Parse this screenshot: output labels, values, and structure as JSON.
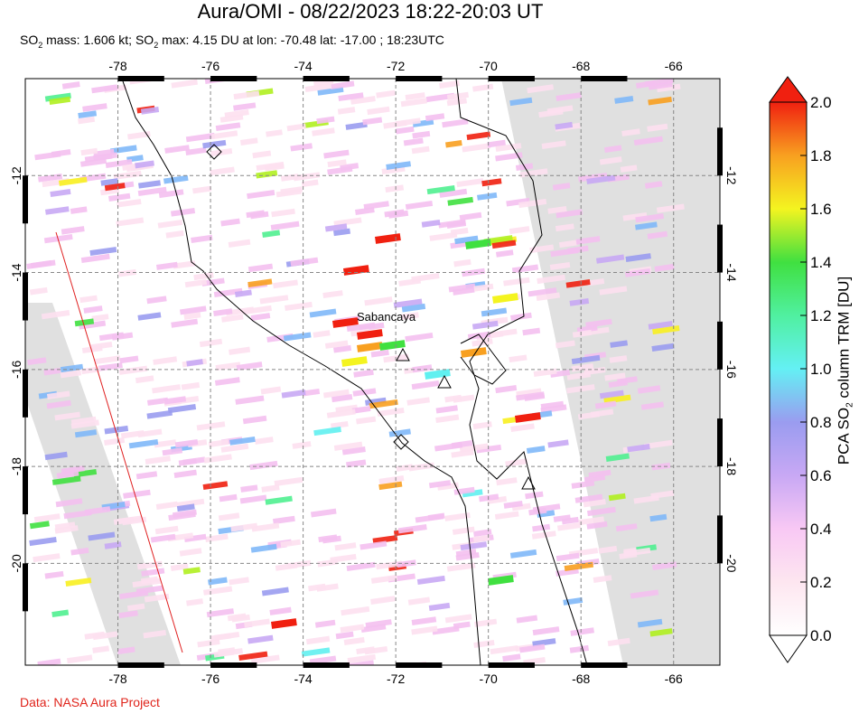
{
  "header": {
    "title": "Aura/OMI - 08/22/2023 18:22-20:03 UT",
    "subtitle_parts": [
      "SO",
      "2",
      " mass: 1.606 kt; SO",
      "2",
      " max: 4.15 DU at lon: -70.48 lat: -17.00 ; 18:23UTC"
    ]
  },
  "credit": "Data: NASA Aura Project",
  "chart_data": {
    "type": "heatmap",
    "lon_ticks": [
      "-78",
      "-76",
      "-74",
      "-72",
      "-70",
      "-68",
      "-66"
    ],
    "lat_ticks": [
      "-12",
      "-14",
      "-16",
      "-18",
      "-20"
    ],
    "lon_range": [
      -80,
      -65
    ],
    "lat_range": [
      -22.1,
      -10
    ],
    "grid": true,
    "volcano_label": "Sabancaya",
    "colorbar": {
      "label_parts": [
        "PCA SO",
        "2",
        " column TRM [DU]"
      ],
      "ticks": [
        "0.0",
        "0.2",
        "0.4",
        "0.6",
        "0.8",
        "1.0",
        "1.2",
        "1.4",
        "1.6",
        "1.8",
        "2.0"
      ],
      "range": [
        0,
        2
      ],
      "colors": [
        "#ffffff",
        "#fde0f0",
        "#f4c0f0",
        "#c8a8f4",
        "#9a9cf0",
        "#80b8f8",
        "#60f0f0",
        "#50f090",
        "#40e040",
        "#b0f020",
        "#f8f020",
        "#f8a020",
        "#f02010"
      ]
    }
  }
}
